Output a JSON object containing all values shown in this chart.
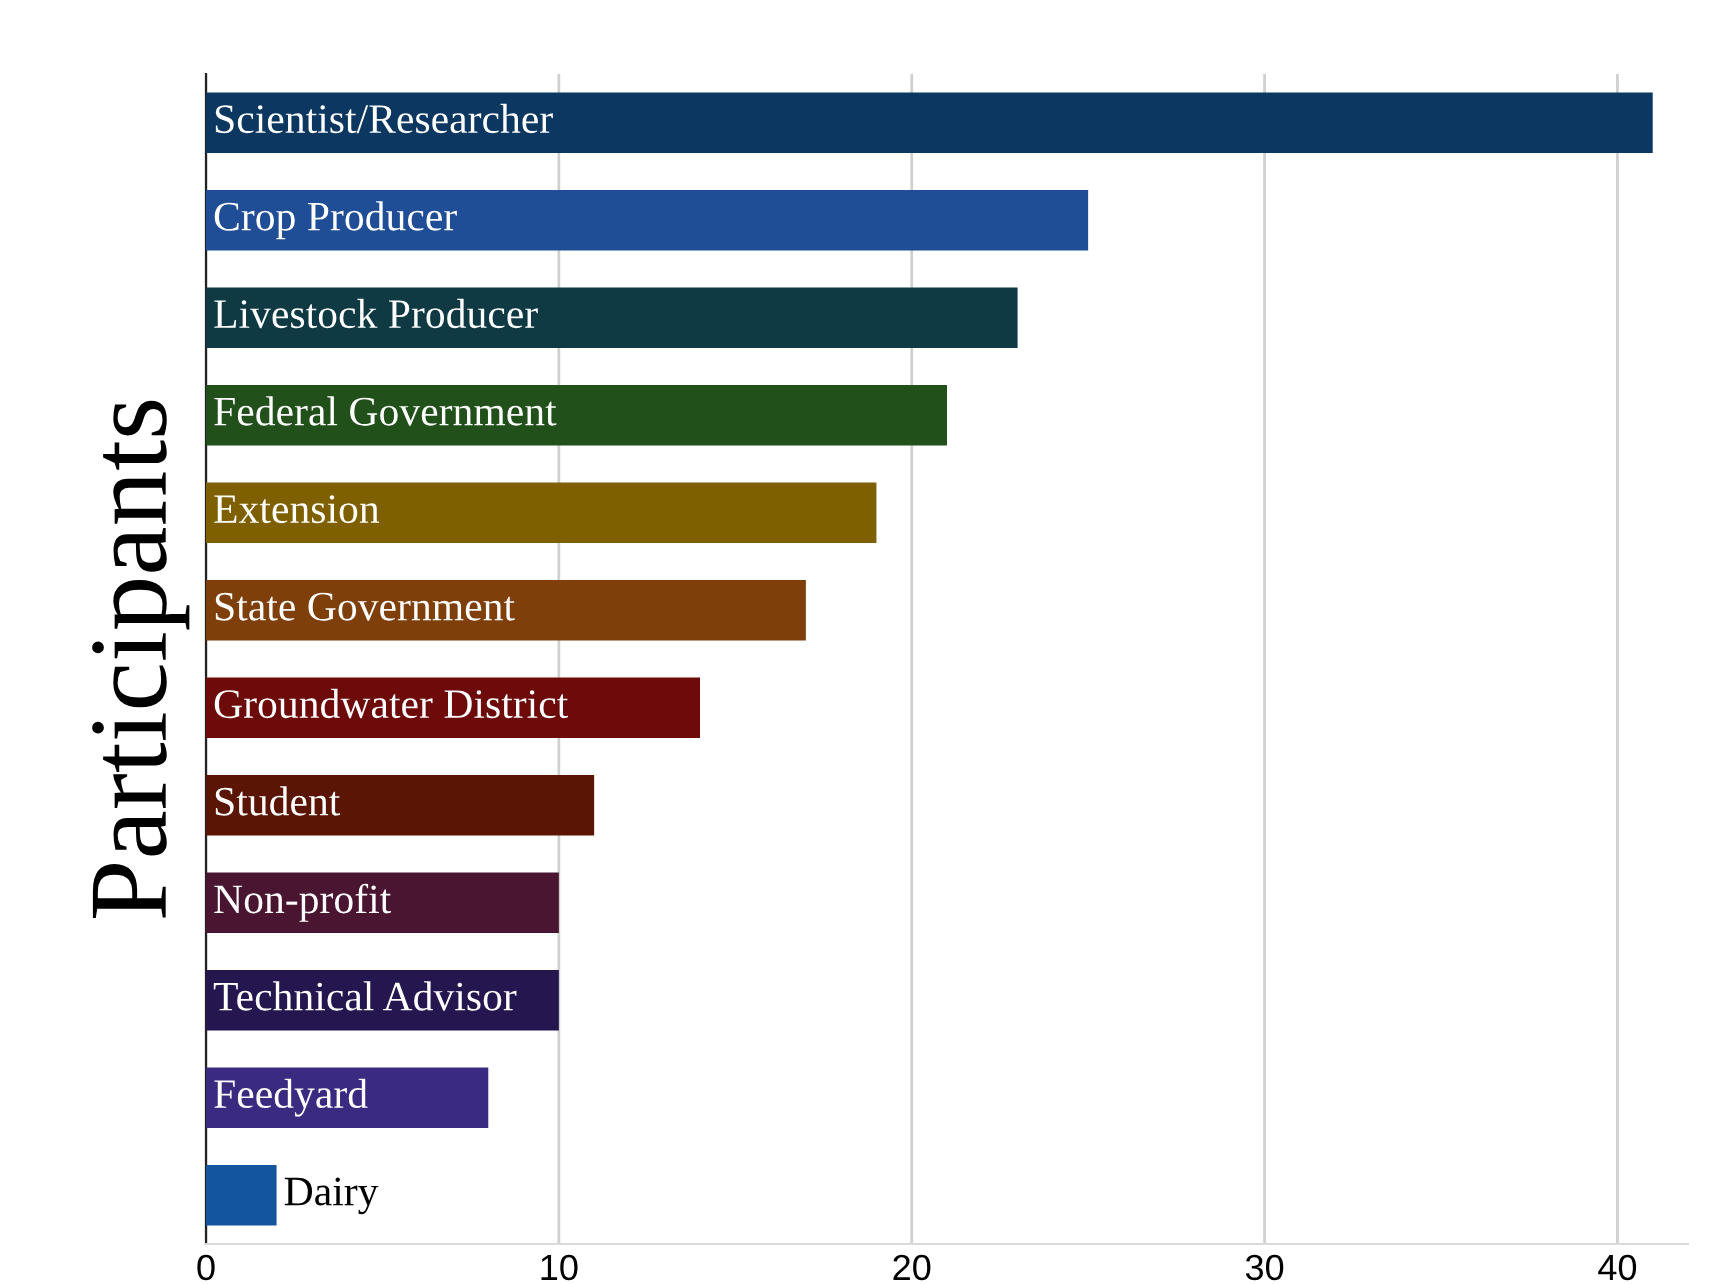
{
  "chart_data": {
    "type": "bar",
    "orientation": "horizontal",
    "ylabel": "Participants",
    "categories": [
      "Scientist/Researcher",
      "Crop Producer",
      "Livestock Producer",
      "Federal Government",
      "Extension",
      "State Government",
      "Groundwater District",
      "Student",
      "Non-profit",
      "Technical Advisor",
      "Feedyard",
      "Dairy"
    ],
    "values": [
      41,
      25,
      23,
      21,
      19,
      17,
      14,
      11,
      10,
      10,
      8,
      2
    ],
    "colors": [
      "#0b3760",
      "#1f4e96",
      "#0f3a44",
      "#21501a",
      "#7f6000",
      "#7f3f0a",
      "#6d0a0a",
      "#5a1505",
      "#4a1530",
      "#251650",
      "#3a2a80",
      "#1455a0"
    ],
    "xlim": [
      0,
      42
    ],
    "xticks": [
      0,
      10,
      20,
      30,
      40
    ],
    "grid": "x",
    "tick_labels": "x"
  }
}
